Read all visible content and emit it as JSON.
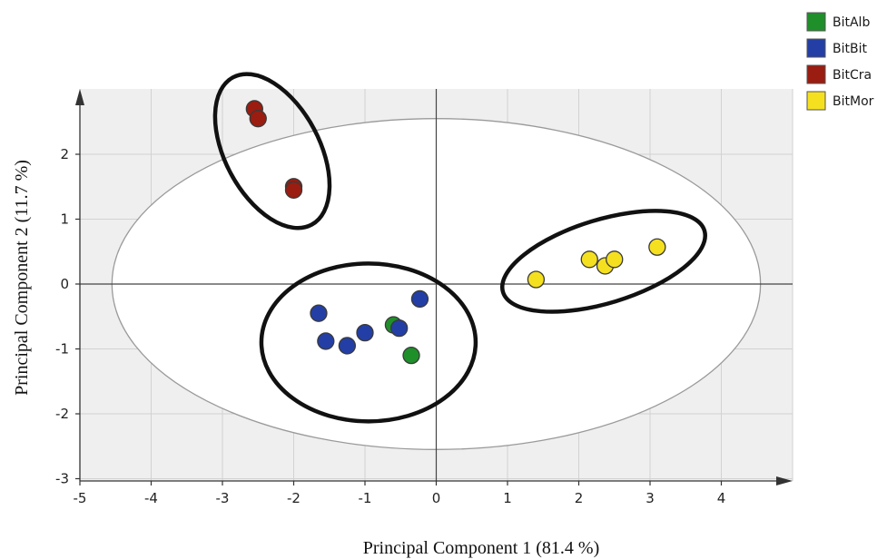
{
  "chart_data": {
    "type": "scatter",
    "xlabel": "Principal Component 1 (81.4 %)",
    "ylabel": "Principal Component 2 (11.7 %)",
    "xlim": [
      -5,
      5
    ],
    "ylim": [
      -3,
      3
    ],
    "xticks": [
      -5,
      -4,
      -3,
      -2,
      -1,
      0,
      1,
      2,
      3,
      4
    ],
    "yticks": [
      -3,
      -2,
      -1,
      0,
      1,
      2
    ],
    "grid": true,
    "legend": "top-right",
    "series": [
      {
        "name": "BitAlb",
        "color": "#1f8f2a",
        "points": [
          [
            -0.6,
            -0.63
          ],
          [
            -0.35,
            -1.1
          ]
        ]
      },
      {
        "name": "BitBit",
        "color": "#233fa6",
        "points": [
          [
            -1.65,
            -0.45
          ],
          [
            -1.55,
            -0.88
          ],
          [
            -1.25,
            -0.95
          ],
          [
            -1.0,
            -0.75
          ],
          [
            -0.52,
            -0.68
          ],
          [
            -0.23,
            -0.23
          ]
        ]
      },
      {
        "name": "BitCra",
        "color": "#9b1c10",
        "points": [
          [
            -2.55,
            2.7
          ],
          [
            -2.5,
            2.55
          ],
          [
            -2.0,
            1.5
          ],
          [
            -2.0,
            1.45
          ]
        ]
      },
      {
        "name": "BitMor",
        "color": "#f5e020",
        "points": [
          [
            1.4,
            0.07
          ],
          [
            2.15,
            0.38
          ],
          [
            2.37,
            0.28
          ],
          [
            2.5,
            0.38
          ],
          [
            3.1,
            0.57
          ]
        ]
      }
    ]
  }
}
